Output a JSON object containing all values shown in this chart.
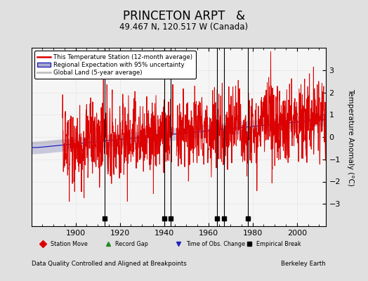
{
  "title": "PRINCETON ARPT   &",
  "subtitle": "49.467 N, 120.517 W (Canada)",
  "xlabel_note": "Data Quality Controlled and Aligned at Breakpoints",
  "credit": "Berkeley Earth",
  "legend_station": "This Temperature Station (12-month average)",
  "legend_regional": "Regional Expectation with 95% uncertainty",
  "legend_global": "Global Land (5-year average)",
  "legend_station_move": "Station Move",
  "legend_record_gap": "Record Gap",
  "legend_obs_change": "Time of Obs. Change",
  "legend_empirical": "Empirical Break",
  "year_start": 1880,
  "year_end": 2013,
  "ylim": [
    -4,
    4
  ],
  "yticks": [
    -3,
    -2,
    -1,
    0,
    1,
    2,
    3
  ],
  "background_color": "#e0e0e0",
  "plot_bg_color": "#f5f5f5",
  "empirical_breaks": [
    1913,
    1940,
    1943,
    1964,
    1967,
    1978
  ],
  "station_color": "#dd0000",
  "regional_color": "#2222bb",
  "regional_fill_color": "#aaaacc",
  "global_color": "#c0c0c0",
  "grid_color": "#cccccc",
  "title_fontsize": 12,
  "subtitle_fontsize": 8.5,
  "tick_fontsize": 8,
  "ylabel": "Temperature Anomaly (°C)"
}
